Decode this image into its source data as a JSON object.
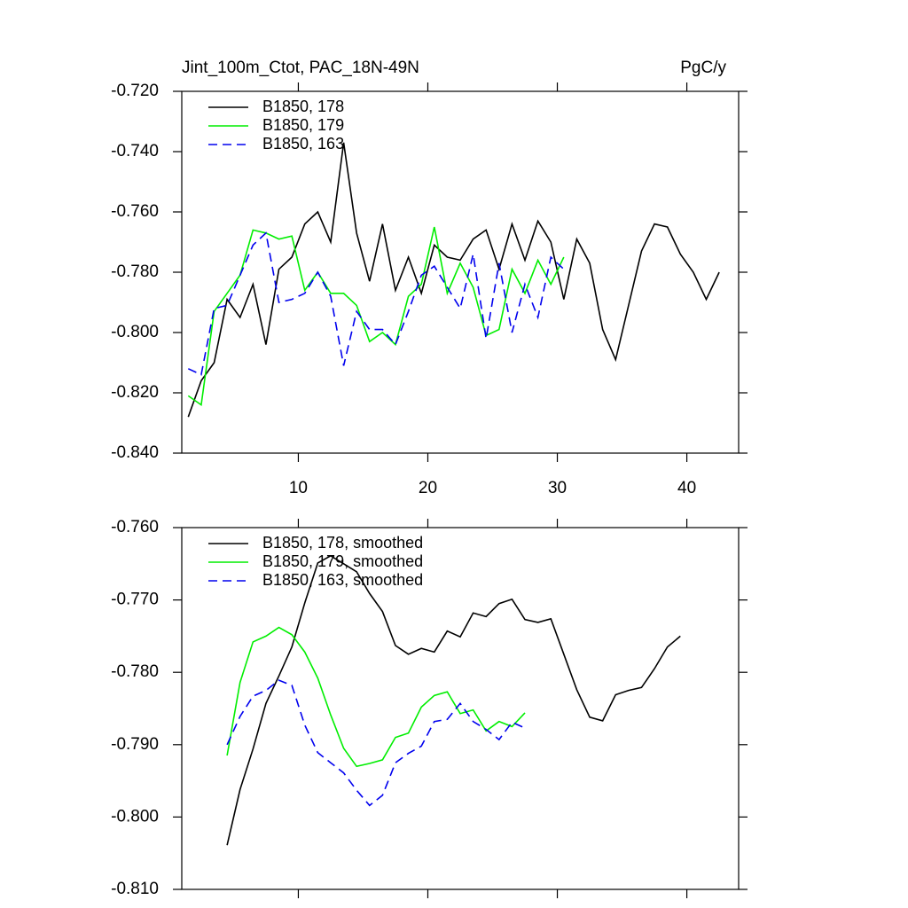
{
  "chart_data": [
    {
      "type": "line",
      "title": "Jint_100m_Ctot, PAC_18N-49N",
      "units": "PgC/y",
      "x": [
        1.5,
        2.5,
        3.5,
        4.5,
        5.5,
        6.5,
        7.5,
        8.5,
        9.5,
        10.5,
        11.5,
        12.5,
        13.5,
        14.5,
        15.5,
        16.5,
        17.5,
        18.5,
        19.5,
        20.5,
        21.5,
        22.5,
        23.5,
        24.5,
        25.5,
        26.5,
        27.5,
        28.5,
        29.5,
        30.5,
        31.5,
        32.5,
        33.5,
        34.5,
        35.5,
        36.5,
        37.5,
        38.5,
        39.5,
        40.5,
        41.5,
        42.5
      ],
      "xlim": [
        1,
        44
      ],
      "xticks": [
        10,
        20,
        30,
        40
      ],
      "ylim": [
        -0.84,
        -0.72
      ],
      "yticks": [
        {
          "value": -0.84,
          "label": "-0.840"
        },
        {
          "value": -0.82,
          "label": "-0.820"
        },
        {
          "value": -0.8,
          "label": "-0.800"
        },
        {
          "value": -0.78,
          "label": "-0.780"
        },
        {
          "value": -0.76,
          "label": "-0.760"
        },
        {
          "value": -0.74,
          "label": "-0.740"
        },
        {
          "value": -0.72,
          "label": "-0.720"
        }
      ],
      "series": [
        {
          "name": "B1850, 178",
          "color": "#000000",
          "dash": false,
          "values": [
            -0.828,
            -0.816,
            -0.81,
            -0.789,
            -0.795,
            -0.784,
            -0.804,
            -0.779,
            -0.775,
            -0.764,
            -0.76,
            -0.77,
            -0.737,
            -0.767,
            -0.783,
            -0.764,
            -0.786,
            -0.775,
            -0.787,
            -0.771,
            -0.775,
            -0.776,
            -0.769,
            -0.766,
            -0.779,
            -0.764,
            -0.776,
            -0.763,
            -0.77,
            -0.789,
            -0.769,
            -0.777,
            -0.799,
            -0.809,
            -0.791,
            -0.773,
            -0.764,
            -0.765,
            -0.774,
            -0.78,
            -0.789,
            -0.78
          ]
        },
        {
          "name": "B1850, 179",
          "color": "#00ee00",
          "dash": false,
          "values": [
            -0.821,
            -0.824,
            -0.793,
            -0.787,
            -0.781,
            -0.766,
            -0.767,
            -0.769,
            -0.768,
            -0.786,
            -0.78,
            -0.787,
            -0.787,
            -0.791,
            -0.803,
            -0.8,
            -0.804,
            -0.788,
            -0.784,
            -0.765,
            -0.787,
            -0.777,
            -0.785,
            -0.801,
            -0.799,
            -0.779,
            -0.787,
            -0.776,
            -0.784,
            -0.775,
            null,
            null,
            null,
            null,
            null,
            null,
            null,
            null,
            null,
            null,
            null,
            null
          ]
        },
        {
          "name": "B1850, 163",
          "color": "#0000ee",
          "dash": true,
          "values": [
            -0.812,
            -0.814,
            -0.792,
            -0.791,
            -0.781,
            -0.771,
            -0.767,
            -0.79,
            -0.789,
            -0.787,
            -0.78,
            -0.788,
            -0.811,
            -0.793,
            -0.799,
            -0.799,
            -0.804,
            -0.793,
            -0.781,
            -0.778,
            -0.785,
            -0.792,
            -0.774,
            -0.802,
            -0.777,
            -0.8,
            -0.784,
            -0.795,
            -0.775,
            -0.779,
            null,
            null,
            null,
            null,
            null,
            null,
            null,
            null,
            null,
            null,
            null,
            null
          ]
        }
      ]
    },
    {
      "type": "line",
      "x": [
        4.5,
        5.5,
        6.5,
        7.5,
        8.5,
        9.5,
        10.5,
        11.5,
        12.5,
        13.5,
        14.5,
        15.5,
        16.5,
        17.5,
        18.5,
        19.5,
        20.5,
        21.5,
        22.5,
        23.5,
        24.5,
        25.5,
        26.5,
        27.5,
        28.5,
        29.5,
        30.5,
        31.5,
        32.5,
        33.5,
        34.5,
        35.5,
        36.5,
        37.5,
        38.5,
        39.5
      ],
      "xlim": [
        1,
        44
      ],
      "xticks": [
        10,
        20,
        30,
        40
      ],
      "ylim": [
        -0.81,
        -0.76
      ],
      "yticks": [
        {
          "value": -0.81,
          "label": "-0.810"
        },
        {
          "value": -0.8,
          "label": "-0.800"
        },
        {
          "value": -0.79,
          "label": "-0.790"
        },
        {
          "value": -0.78,
          "label": "-0.780"
        },
        {
          "value": -0.77,
          "label": "-0.770"
        },
        {
          "value": -0.76,
          "label": "-0.760"
        }
      ],
      "series": [
        {
          "name": "B1850, 178, smoothed",
          "color": "#000000",
          "dash": false,
          "values": [
            -0.8039,
            -0.7962,
            -0.7906,
            -0.7843,
            -0.7805,
            -0.7765,
            -0.7704,
            -0.7649,
            -0.7639,
            -0.765,
            -0.7661,
            -0.7691,
            -0.7716,
            -0.7763,
            -0.7775,
            -0.7767,
            -0.7772,
            -0.7743,
            -0.7751,
            -0.7718,
            -0.7723,
            -0.7705,
            -0.7699,
            -0.7727,
            -0.7731,
            -0.7726,
            -0.7775,
            -0.7824,
            -0.7862,
            -0.7867,
            -0.7831,
            -0.7825,
            -0.7821,
            -0.7795,
            -0.7765,
            -0.775
          ]
        },
        {
          "name": "B1850, 179, smoothed",
          "color": "#00ee00",
          "dash": false,
          "values": [
            -0.7915,
            -0.7814,
            -0.7758,
            -0.775,
            -0.7738,
            -0.7748,
            -0.7772,
            -0.7808,
            -0.7859,
            -0.7905,
            -0.793,
            -0.7926,
            -0.7921,
            -0.789,
            -0.7884,
            -0.7848,
            -0.7832,
            -0.7827,
            -0.7857,
            -0.7852,
            -0.7881,
            -0.7868,
            -0.7875,
            -0.7856,
            null,
            null,
            null,
            null,
            null,
            null,
            null,
            null,
            null,
            null,
            null,
            null
          ]
        },
        {
          "name": "B1850, 163, smoothed",
          "color": "#0000ee",
          "dash": true,
          "values": [
            -0.79,
            -0.7861,
            -0.7833,
            -0.7825,
            -0.7811,
            -0.7818,
            -0.7873,
            -0.7911,
            -0.7925,
            -0.7939,
            -0.7963,
            -0.7984,
            -0.797,
            -0.7925,
            -0.7912,
            -0.7902,
            -0.7868,
            -0.7865,
            -0.7843,
            -0.7868,
            -0.7879,
            -0.7893,
            -0.7869,
            -0.7877,
            null,
            null,
            null,
            null,
            null,
            null,
            null,
            null,
            null,
            null,
            null,
            null
          ]
        }
      ]
    }
  ]
}
